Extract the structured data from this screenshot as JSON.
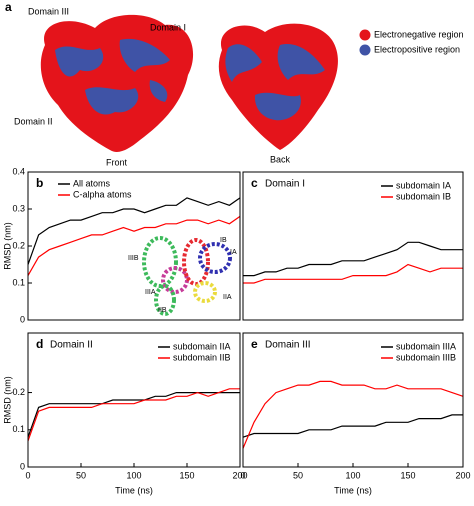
{
  "figure_a": {
    "panel": "a",
    "domain_labels": [
      "Domain III",
      "Domain I",
      "Domain II"
    ],
    "views": [
      "Front",
      "Back"
    ],
    "legend": [
      "Electronegative region",
      "Electropositive region"
    ]
  },
  "inset": {
    "labels": [
      "IIIB",
      "IB",
      "IA",
      "IIIA",
      "IIB",
      "IIA"
    ]
  },
  "chart_data": [
    {
      "type": "line",
      "panel": "b",
      "ylabel": "RMSD (nm)",
      "legend": "upper left",
      "x": [
        0,
        10,
        20,
        30,
        40,
        50,
        60,
        70,
        80,
        90,
        100,
        110,
        120,
        130,
        140,
        150,
        160,
        170,
        180,
        190,
        200
      ],
      "xlim": [
        0,
        200
      ],
      "ylim": [
        0,
        0.4
      ],
      "yticks": [
        0,
        0.1,
        0.2,
        0.3,
        0.4
      ],
      "series": [
        {
          "name": "All atoms",
          "color": "#000000",
          "values": [
            0.15,
            0.23,
            0.25,
            0.26,
            0.27,
            0.27,
            0.28,
            0.29,
            0.29,
            0.3,
            0.3,
            0.29,
            0.3,
            0.31,
            0.31,
            0.33,
            0.32,
            0.31,
            0.32,
            0.31,
            0.33
          ]
        },
        {
          "name": "C-alpha atoms",
          "color": "#ff0000",
          "values": [
            0.12,
            0.17,
            0.19,
            0.2,
            0.21,
            0.22,
            0.23,
            0.23,
            0.24,
            0.25,
            0.24,
            0.25,
            0.25,
            0.26,
            0.26,
            0.27,
            0.27,
            0.26,
            0.27,
            0.26,
            0.28
          ]
        }
      ]
    },
    {
      "type": "line",
      "panel": "c",
      "title": "Domain I",
      "legend": "upper right",
      "x": [
        0,
        10,
        20,
        30,
        40,
        50,
        60,
        70,
        80,
        90,
        100,
        110,
        120,
        130,
        140,
        150,
        160,
        170,
        180,
        190,
        200
      ],
      "xlim": [
        0,
        200
      ],
      "ylim": [
        0,
        0.4
      ],
      "series": [
        {
          "name": "subdomain IA",
          "color": "#000000",
          "values": [
            0.12,
            0.12,
            0.13,
            0.13,
            0.14,
            0.14,
            0.15,
            0.15,
            0.15,
            0.16,
            0.16,
            0.16,
            0.17,
            0.18,
            0.19,
            0.21,
            0.21,
            0.2,
            0.19,
            0.19,
            0.19
          ]
        },
        {
          "name": "subdomain IB",
          "color": "#ff0000",
          "values": [
            0.1,
            0.1,
            0.11,
            0.11,
            0.11,
            0.11,
            0.11,
            0.11,
            0.11,
            0.11,
            0.12,
            0.12,
            0.12,
            0.12,
            0.13,
            0.15,
            0.14,
            0.13,
            0.14,
            0.14,
            0.14
          ]
        }
      ]
    },
    {
      "type": "line",
      "panel": "d",
      "title": "Domain II",
      "ylabel": "RMSD (nm)",
      "xlabel": "Time (ns)",
      "legend": "upper right",
      "x": [
        0,
        10,
        20,
        30,
        40,
        50,
        60,
        70,
        80,
        90,
        100,
        110,
        120,
        130,
        140,
        150,
        160,
        170,
        180,
        190,
        200
      ],
      "xlim": [
        0,
        200
      ],
      "xticks": [
        0,
        50,
        100,
        150,
        200
      ],
      "ylim": [
        0,
        0.36
      ],
      "yticks": [
        0,
        0.1,
        0.2
      ],
      "series": [
        {
          "name": "subdomain IIA",
          "color": "#000000",
          "values": [
            0.08,
            0.16,
            0.17,
            0.17,
            0.17,
            0.17,
            0.17,
            0.17,
            0.18,
            0.18,
            0.18,
            0.18,
            0.19,
            0.19,
            0.2,
            0.2,
            0.2,
            0.2,
            0.2,
            0.2,
            0.2
          ]
        },
        {
          "name": "subdomain IIB",
          "color": "#ff0000",
          "values": [
            0.07,
            0.15,
            0.16,
            0.16,
            0.16,
            0.16,
            0.16,
            0.17,
            0.17,
            0.17,
            0.17,
            0.18,
            0.18,
            0.18,
            0.19,
            0.19,
            0.2,
            0.19,
            0.2,
            0.21,
            0.21
          ]
        }
      ]
    },
    {
      "type": "line",
      "panel": "e",
      "title": "Domain III",
      "xlabel": "Time (ns)",
      "legend": "upper right",
      "x": [
        0,
        10,
        20,
        30,
        40,
        50,
        60,
        70,
        80,
        90,
        100,
        110,
        120,
        130,
        140,
        150,
        160,
        170,
        180,
        190,
        200
      ],
      "xlim": [
        0,
        200
      ],
      "xticks": [
        0,
        50,
        100,
        150,
        200
      ],
      "ylim": [
        0,
        0.36
      ],
      "series": [
        {
          "name": "subdomain IIIA",
          "color": "#000000",
          "values": [
            0.08,
            0.09,
            0.09,
            0.09,
            0.09,
            0.09,
            0.1,
            0.1,
            0.1,
            0.11,
            0.11,
            0.11,
            0.11,
            0.12,
            0.12,
            0.12,
            0.13,
            0.13,
            0.13,
            0.14,
            0.14
          ]
        },
        {
          "name": "subdomain IIIB",
          "color": "#ff0000",
          "values": [
            0.05,
            0.12,
            0.17,
            0.2,
            0.21,
            0.22,
            0.22,
            0.23,
            0.23,
            0.22,
            0.22,
            0.22,
            0.21,
            0.21,
            0.22,
            0.21,
            0.21,
            0.21,
            0.21,
            0.2,
            0.19
          ]
        }
      ]
    }
  ]
}
